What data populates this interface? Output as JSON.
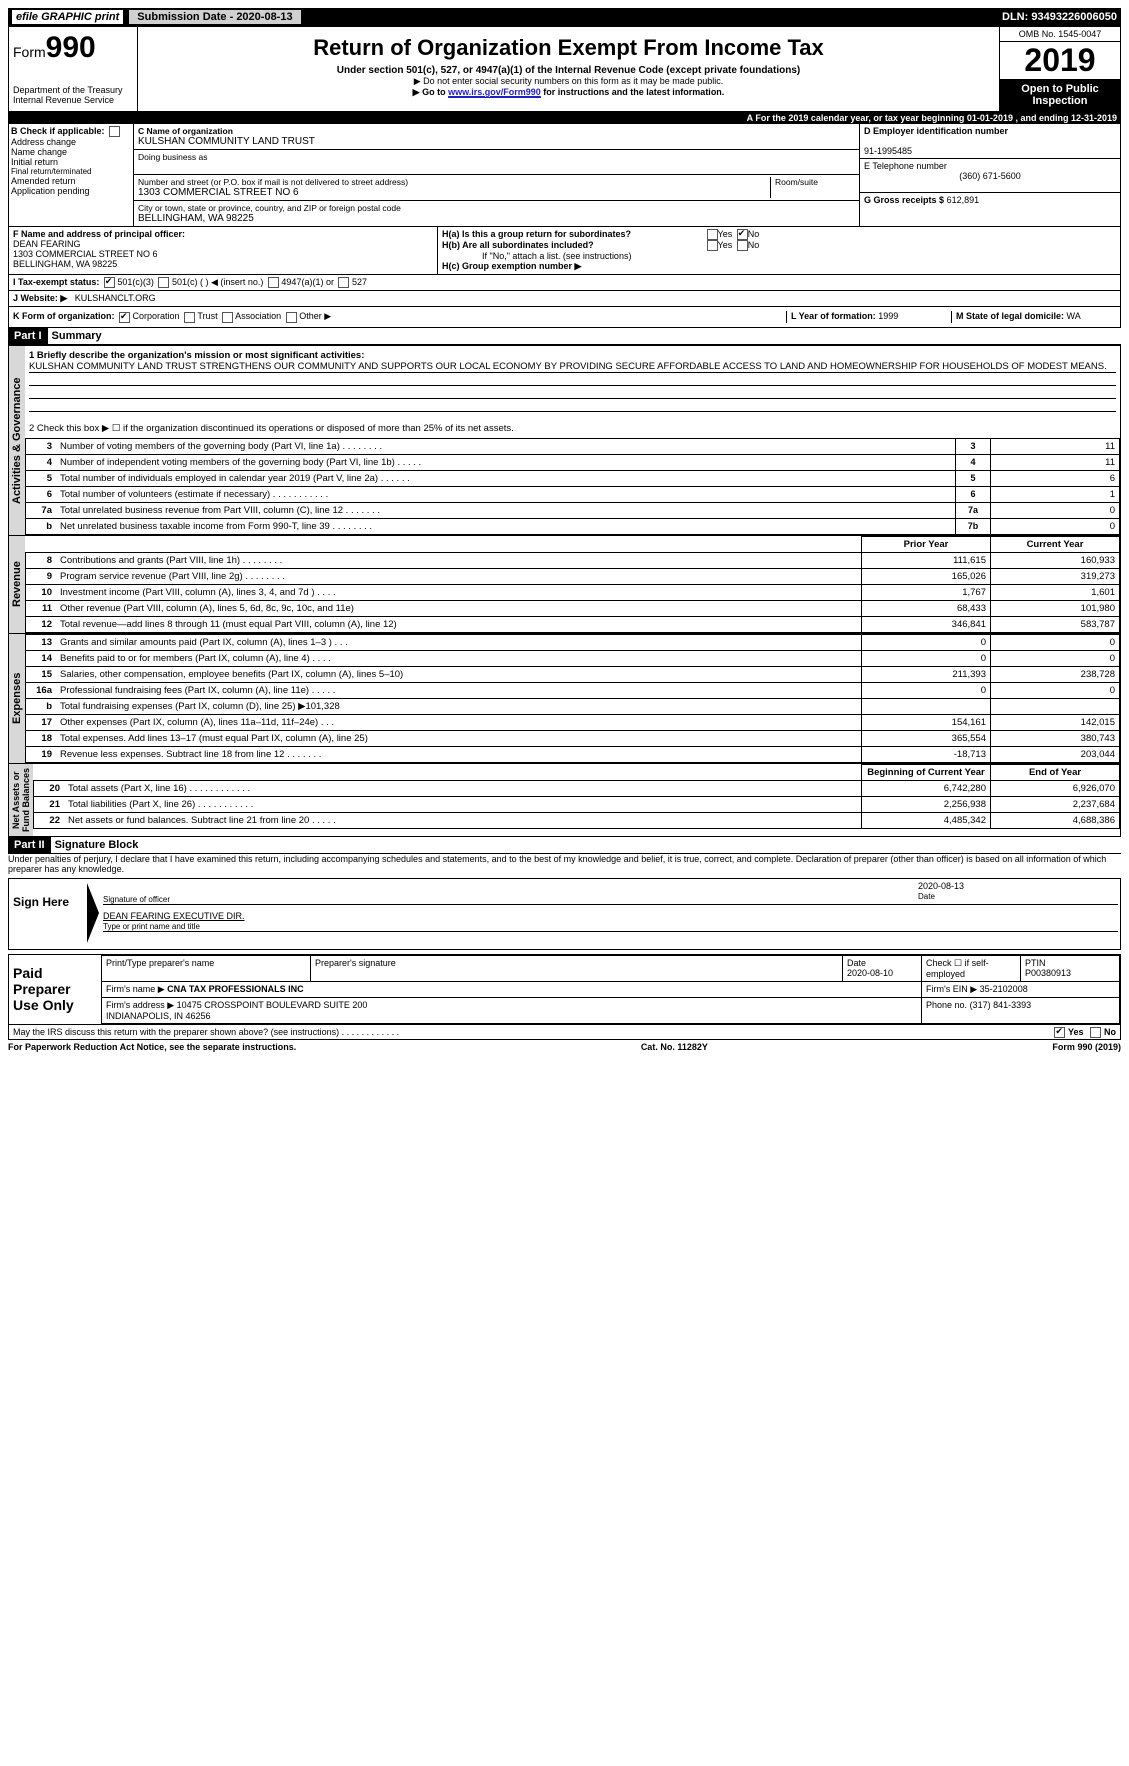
{
  "topbar": {
    "efile": "efile GRAPHIC print",
    "submit": "Submission Date - 2020-08-13",
    "dln": "DLN: 93493226006050"
  },
  "header": {
    "form_prefix": "Form",
    "form_no": "990",
    "dept": "Department of the Treasury",
    "irs": "Internal Revenue Service",
    "title": "Return of Organization Exempt From Income Tax",
    "sub": "Under section 501(c), 527, or 4947(a)(1) of the Internal Revenue Code (except private foundations)",
    "note1": "▶ Do not enter social security numbers on this form as it may be made public.",
    "note2_pre": "▶ Go to ",
    "note2_link": "www.irs.gov/Form990",
    "note2_post": " for instructions and the latest information.",
    "omb": "OMB No. 1545-0047",
    "year": "2019",
    "open": "Open to Public Inspection"
  },
  "rowA": "A   For the 2019 calendar year, or tax year beginning 01-01-2019       , and ending 12-31-2019",
  "B": {
    "label": "B Check if applicable:",
    "items": [
      "Address change",
      "Name change",
      "Initial return",
      "Final return/terminated",
      "Amended return",
      "Application pending"
    ]
  },
  "C": {
    "label": "C Name of organization",
    "name": "KULSHAN COMMUNITY LAND TRUST",
    "dba_label": "Doing business as",
    "dba": "",
    "street_label": "Number and street (or P.O. box if mail is not delivered to street address)",
    "room_label": "Room/suite",
    "street": "1303 COMMERCIAL STREET NO 6",
    "city_label": "City or town, state or province, country, and ZIP or foreign postal code",
    "city": "BELLINGHAM, WA  98225"
  },
  "D": {
    "label": "D Employer identification number",
    "val": "91-1995485"
  },
  "E": {
    "label": "E Telephone number",
    "val": "(360) 671-5600"
  },
  "G": {
    "label": "G Gross receipts $",
    "val": "612,891"
  },
  "F": {
    "label": "F  Name and address of principal officer:",
    "name": "DEAN FEARING",
    "addr1": "1303 COMMERCIAL STREET NO 6",
    "addr2": "BELLINGHAM, WA  98225"
  },
  "H": {
    "a": "H(a)   Is this a group return for subordinates?",
    "a_no": "No",
    "a_yes": "Yes",
    "b": "H(b)   Are all subordinates included?",
    "b_note": "If \"No,\" attach a list. (see instructions)",
    "c": "H(c)   Group exemption number ▶"
  },
  "I": {
    "label": "I    Tax-exempt status:",
    "opts": [
      "501(c)(3)",
      "501(c) (  ) ◀ (insert no.)",
      "4947(a)(1) or",
      "527"
    ]
  },
  "J": {
    "label": "J   Website: ▶",
    "val": "KULSHANCLT.ORG"
  },
  "K": {
    "label": "K Form of organization:",
    "opts": [
      "Corporation",
      "Trust",
      "Association",
      "Other ▶"
    ]
  },
  "L": {
    "label": "L Year of formation:",
    "val": "1999"
  },
  "M": {
    "label": "M State of legal domicile:",
    "val": "WA"
  },
  "partI": {
    "tab": "Part I",
    "title": "Summary"
  },
  "summary": {
    "q1": "1  Briefly describe the organization's mission or most significant activities:",
    "mission": "KULSHAN COMMUNITY LAND TRUST STRENGTHENS OUR COMMUNITY AND SUPPORTS OUR LOCAL ECONOMY BY PROVIDING SECURE AFFORDABLE ACCESS TO LAND AND HOMEOWNERSHIP FOR HOUSEHOLDS OF MODEST MEANS.",
    "q2": "2  Check this box ▶ ☐ if the organization discontinued its operations or disposed of more than 25% of its net assets.",
    "rows": [
      {
        "n": "3",
        "d": "Number of voting members of the governing body (Part VI, line 1a)   .     .     .     .     .     .     .     .",
        "b": "3",
        "v": "11"
      },
      {
        "n": "4",
        "d": "Number of independent voting members of the governing body (Part VI, line 1b)   .     .     .     .     .",
        "b": "4",
        "v": "11"
      },
      {
        "n": "5",
        "d": "Total number of individuals employed in calendar year 2019 (Part V, line 2a)   .     .     .     .     .     .",
        "b": "5",
        "v": "6"
      },
      {
        "n": "6",
        "d": "Total number of volunteers (estimate if necessary)   .     .     .     .     .     .     .     .     .     .     .",
        "b": "6",
        "v": "1"
      },
      {
        "n": "7a",
        "d": "Total unrelated business revenue from Part VIII, column (C), line 12   .     .     .     .     .     .     .",
        "b": "7a",
        "v": "0"
      },
      {
        "n": "b",
        "d": "Net unrelated business taxable income from Form 990-T, line 39   .     .     .     .     .     .     .     .",
        "b": "7b",
        "v": "0"
      }
    ]
  },
  "fin": {
    "hdr_prior": "Prior Year",
    "hdr_curr": "Current Year",
    "rev": [
      {
        "n": "8",
        "d": "Contributions and grants (Part VIII, line 1h)   .     .     .     .     .     .     .     .",
        "p": "111,615",
        "c": "160,933"
      },
      {
        "n": "9",
        "d": "Program service revenue (Part VIII, line 2g)   .     .     .     .     .     .     .     .",
        "p": "165,026",
        "c": "319,273"
      },
      {
        "n": "10",
        "d": "Investment income (Part VIII, column (A), lines 3, 4, and 7d )   .     .     .     .",
        "p": "1,767",
        "c": "1,601"
      },
      {
        "n": "11",
        "d": "Other revenue (Part VIII, column (A), lines 5, 6d, 8c, 9c, 10c, and 11e)",
        "p": "68,433",
        "c": "101,980"
      },
      {
        "n": "12",
        "d": "Total revenue—add lines 8 through 11 (must equal Part VIII, column (A), line 12)",
        "p": "346,841",
        "c": "583,787"
      }
    ],
    "exp": [
      {
        "n": "13",
        "d": "Grants and similar amounts paid (Part IX, column (A), lines 1–3 )   .     .     .",
        "p": "0",
        "c": "0"
      },
      {
        "n": "14",
        "d": "Benefits paid to or for members (Part IX, column (A), line 4)   .     .     .     .",
        "p": "0",
        "c": "0"
      },
      {
        "n": "15",
        "d": "Salaries, other compensation, employee benefits (Part IX, column (A), lines 5–10)",
        "p": "211,393",
        "c": "238,728"
      },
      {
        "n": "16a",
        "d": "Professional fundraising fees (Part IX, column (A), line 11e)   .     .     .     .     .",
        "p": "0",
        "c": "0"
      },
      {
        "n": "b",
        "d": "Total fundraising expenses (Part IX, column (D), line 25) ▶101,328",
        "p": "",
        "c": "",
        "shade": true
      },
      {
        "n": "17",
        "d": "Other expenses (Part IX, column (A), lines 11a–11d, 11f–24e)   .     .     .",
        "p": "154,161",
        "c": "142,015"
      },
      {
        "n": "18",
        "d": "Total expenses. Add lines 13–17 (must equal Part IX, column (A), line 25)",
        "p": "365,554",
        "c": "380,743"
      },
      {
        "n": "19",
        "d": "Revenue less expenses. Subtract line 18 from line 12   .     .     .     .     .     .     .",
        "p": "-18,713",
        "c": "203,044"
      }
    ],
    "hdr_beg": "Beginning of Current Year",
    "hdr_end": "End of Year",
    "net": [
      {
        "n": "20",
        "d": "Total assets (Part X, line 16)   .     .     .     .     .     .     .     .     .     .     .     .",
        "p": "6,742,280",
        "c": "6,926,070"
      },
      {
        "n": "21",
        "d": "Total liabilities (Part X, line 26)   .     .     .     .     .     .     .     .     .     .     .",
        "p": "2,256,938",
        "c": "2,237,684"
      },
      {
        "n": "22",
        "d": "Net assets or fund balances. Subtract line 21 from line 20   .     .     .     .     .",
        "p": "4,485,342",
        "c": "4,688,386"
      }
    ]
  },
  "partII": {
    "tab": "Part II",
    "title": "Signature Block",
    "decl": "Under penalties of perjury, I declare that I have examined this return, including accompanying schedules and statements, and to the best of my knowledge and belief, it is true, correct, and complete. Declaration of preparer (other than officer) is based on all information of which preparer has any knowledge."
  },
  "sign": {
    "here": "Sign Here",
    "sig_label": "Signature of officer",
    "date": "2020-08-13",
    "date_label": "Date",
    "name": "DEAN FEARING  EXECUTIVE DIR.",
    "name_label": "Type or print name and title"
  },
  "paid": {
    "label": "Paid Preparer Use Only",
    "h1": "Print/Type preparer's name",
    "h2": "Preparer's signature",
    "h3": "Date",
    "h3v": "2020-08-10",
    "h4": "Check ☐ if self-employed",
    "h5": "PTIN",
    "h5v": "P00380913",
    "firm_label": "Firm's name    ▶",
    "firm": "CNA TAX PROFESSIONALS INC",
    "ein_label": "Firm's EIN ▶",
    "ein": "35-2102008",
    "addr_label": "Firm's address ▶",
    "addr": "10475 CROSSPOINT BOULEVARD SUITE 200\nINDIANAPOLIS, IN  46256",
    "phone_label": "Phone no.",
    "phone": "(317) 841-3393"
  },
  "discuss": "May the IRS discuss this return with the preparer shown above? (see instructions)   .     .     .     .     .     .     .     .     .     .     .     .",
  "discuss_yes": "Yes",
  "discuss_no": "No",
  "footer": {
    "l": "For Paperwork Reduction Act Notice, see the separate instructions.",
    "m": "Cat. No. 11282Y",
    "r": "Form 990 (2019)"
  }
}
